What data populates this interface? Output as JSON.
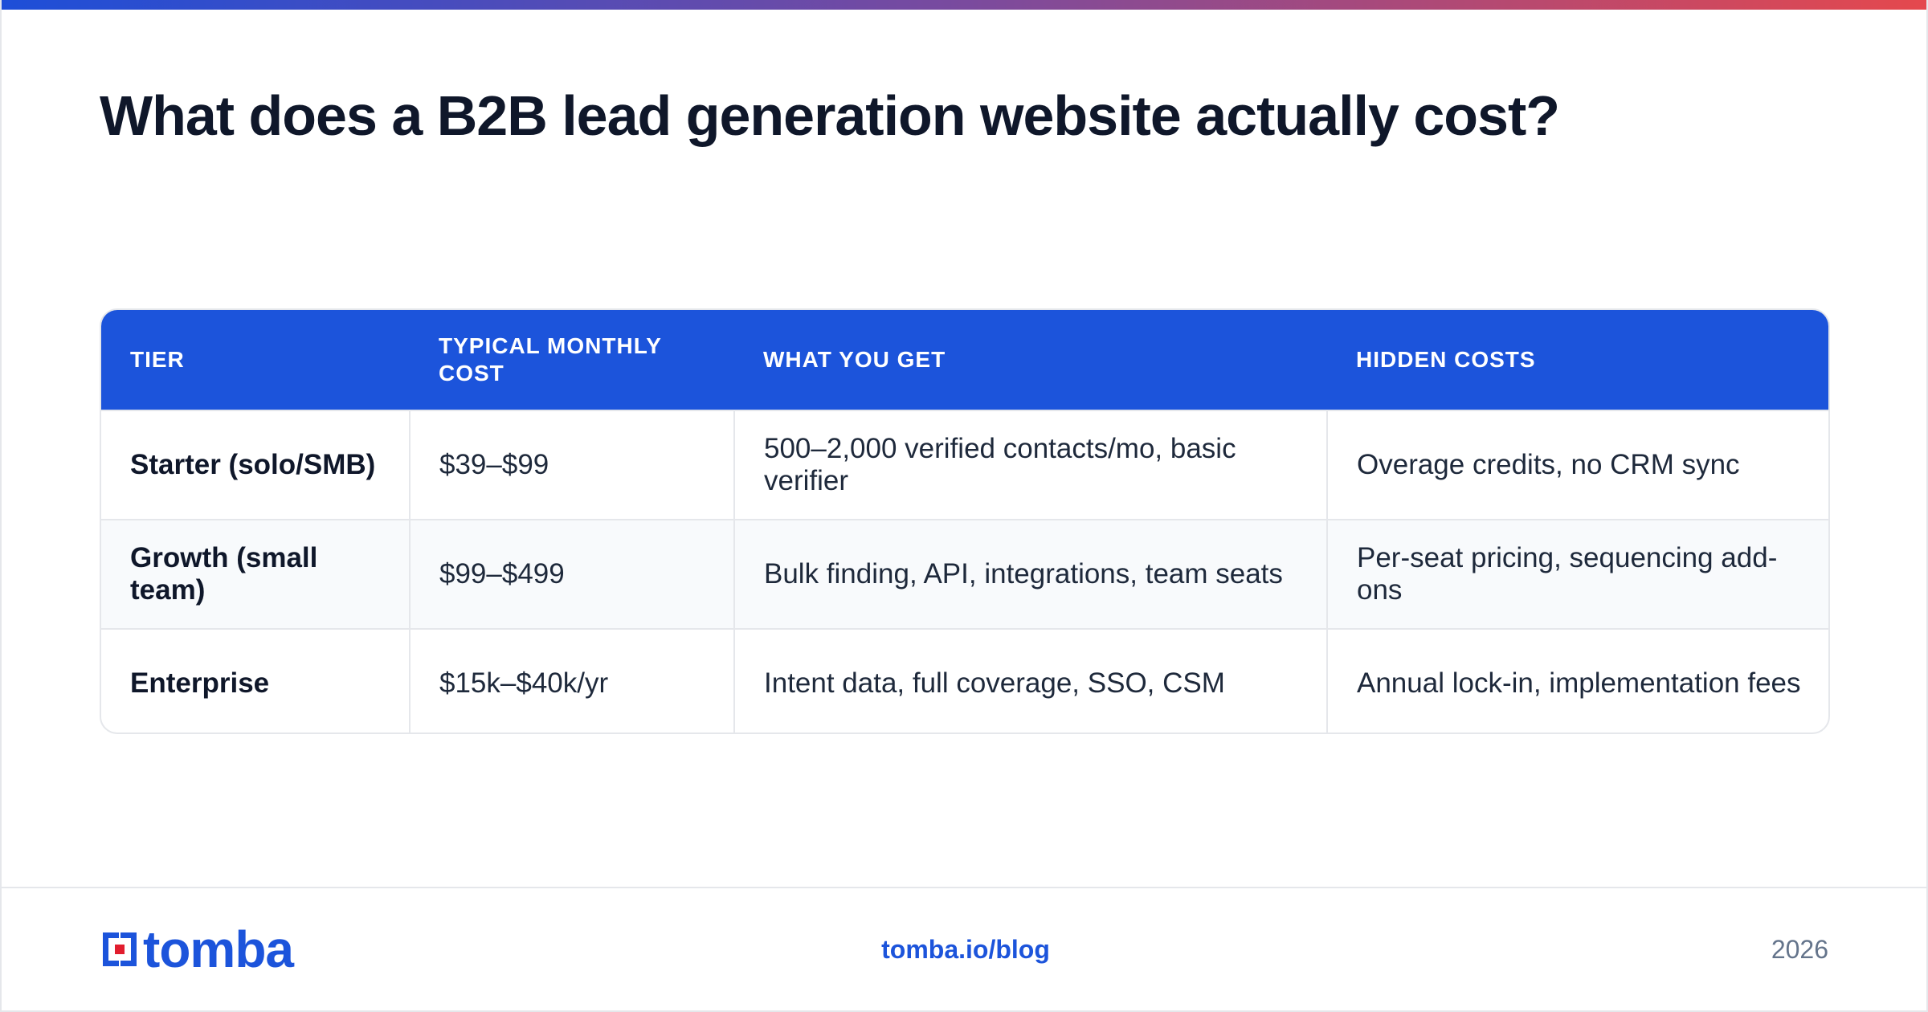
{
  "header": {
    "title": "What does a B2B lead generation website actually cost?"
  },
  "table": {
    "columns": [
      "TIER",
      "TYPICAL MONTHLY COST",
      "WHAT YOU GET",
      "HIDDEN COSTS"
    ],
    "rows": [
      {
        "tier": "Starter (solo/SMB)",
        "cost": "$39–$99",
        "features": "500–2,000 verified contacts/mo, basic verifier",
        "hidden": "Overage credits, no CRM sync"
      },
      {
        "tier": "Growth (small team)",
        "cost": "$99–$499",
        "features": "Bulk finding, API, integrations, team seats",
        "hidden": "Per-seat pricing, sequencing add-ons"
      },
      {
        "tier": "Enterprise",
        "cost": "$15k–$40k/yr",
        "features": "Intent data, full coverage, SSO, CSM",
        "hidden": "Annual lock-in, implementation fees"
      }
    ]
  },
  "footer": {
    "logo_text": "tomba",
    "url": "tomba.io/blog",
    "year": "2026"
  },
  "colors": {
    "accent": "#1c54db",
    "gradient_start": "#1d4ed8",
    "gradient_end": "#e5484d",
    "logo_red": "#e11d2e"
  },
  "icons": {
    "logo_mark": "tomba-logo-icon"
  }
}
